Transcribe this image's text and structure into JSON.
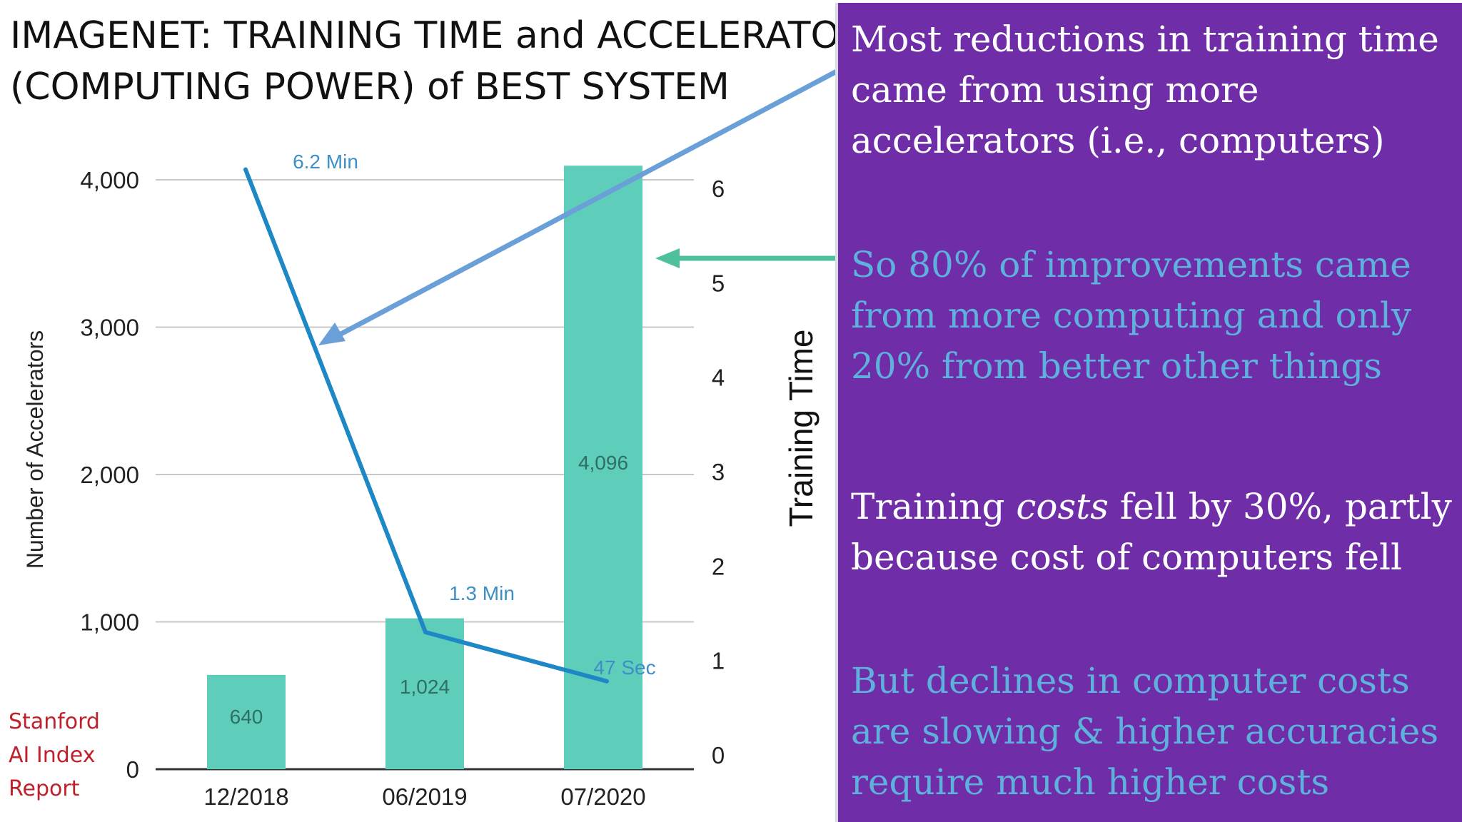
{
  "title": {
    "line1": "IMAGENET: TRAINING TIME and ACCELERATORS",
    "line2": "(COMPUTING POWER) of BEST SYSTEM"
  },
  "source": {
    "line1": "Stanford",
    "line2": "AI Index",
    "line3": "Report"
  },
  "chart_data": {
    "type": "bar",
    "categories": [
      "12/2018",
      "06/2019",
      "07/2020"
    ],
    "series": [
      {
        "type": "bar",
        "axis": "left",
        "values": [
          640,
          1024,
          4096
        ],
        "labels": [
          "640",
          "1,024",
          "4,096"
        ],
        "color": "#5ecdb9"
      },
      {
        "type": "line",
        "axis": "right",
        "values": [
          6.2,
          1.3,
          0.78
        ],
        "labels": [
          "6.2 Min",
          "1.3 Min",
          "47 Sec"
        ],
        "color": "#1e88c7"
      }
    ],
    "ylabel": "Number of Accelerators",
    "y2label": "Training Time",
    "ylim": [
      0,
      4000
    ],
    "y2lim": [
      0,
      6
    ],
    "yticks": [
      {
        "value": 0,
        "label": "0"
      },
      {
        "value": 1000,
        "label": "1,000"
      },
      {
        "value": 2000,
        "label": "2,000"
      },
      {
        "value": 3000,
        "label": "3,000"
      },
      {
        "value": 4000,
        "label": "4,000"
      }
    ],
    "y2ticks": [
      "0",
      "1",
      "2",
      "3",
      "4",
      "5",
      "6"
    ],
    "grid": true
  },
  "panel": {
    "para1": "Most reductions in training time came from using more accelerators (i.e., computers)",
    "para2": "So 80% of improvements came from more computing and only 20% from better other things",
    "para3_before": "Training ",
    "para3_italic": "costs",
    "para3_after": " fell by 30%, partly because cost of computers fell",
    "para4": "But declines in computer costs are slowing & higher accuracies require much higher costs"
  },
  "colors": {
    "panel_bg": "#6f2da8",
    "panel_white_text": "#ffffff",
    "panel_cyan_text": "#5fb1dd",
    "bar": "#5ecdb9",
    "line": "#1e88c7",
    "arrow_blue": "#6a9fd8",
    "arrow_green": "#4fbf9e",
    "source_red": "#c0202a"
  }
}
